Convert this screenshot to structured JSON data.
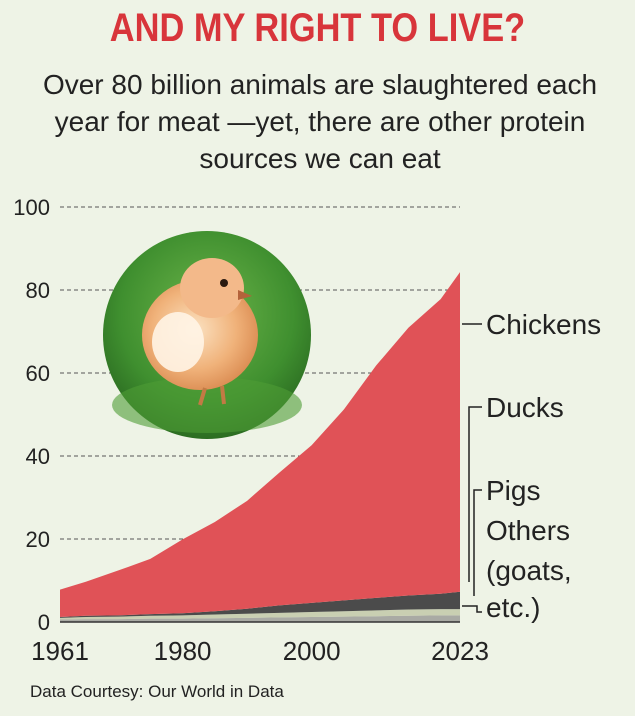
{
  "headline": "AND MY RIGHT TO LIVE?",
  "subhead": "Over 80 billion animals are slaughtered each year for meat —yet, there are other protein sources we can eat",
  "footer": "Data Courtesy: Our World in Data",
  "colors": {
    "background": "#eef3e6",
    "headline": "#d8353b",
    "chickens": "#e05257",
    "ducks": "#4b4b4b",
    "pigs": "#c9cfb2",
    "others": "#a9aaa4",
    "grid": "#555555"
  },
  "photo": {
    "icon": "chick-photo-circle"
  },
  "chart_data": {
    "type": "area",
    "stacked": true,
    "ylim": [
      0,
      100
    ],
    "yticks": [
      0,
      20,
      40,
      60,
      80,
      100
    ],
    "xlim": [
      1961,
      2023
    ],
    "xticks": [
      1961,
      1980,
      2000,
      2023
    ],
    "grid": "dashed horizontal",
    "legend_placement": "right",
    "x": [
      1961,
      1965,
      1970,
      1975,
      1980,
      1985,
      1990,
      1995,
      2000,
      2005,
      2010,
      2015,
      2020,
      2023
    ],
    "series": [
      {
        "name": "Others (goats, etc.)",
        "values": [
          0.6,
          0.7,
          0.7,
          0.8,
          0.8,
          0.9,
          1.0,
          1.1,
          1.2,
          1.3,
          1.4,
          1.5,
          1.6,
          1.6
        ]
      },
      {
        "name": "Pigs",
        "values": [
          0.4,
          0.5,
          0.6,
          0.7,
          0.8,
          0.9,
          1.0,
          1.1,
          1.2,
          1.3,
          1.4,
          1.5,
          1.5,
          1.5
        ]
      },
      {
        "name": "Ducks",
        "values": [
          0.2,
          0.3,
          0.3,
          0.4,
          0.5,
          0.8,
          1.2,
          1.8,
          2.2,
          2.6,
          3.0,
          3.4,
          3.7,
          4.2
        ]
      },
      {
        "name": "Chickens",
        "values": [
          6.6,
          8.2,
          10.8,
          13.3,
          17.8,
          21.5,
          26.0,
          32.0,
          38.0,
          46.0,
          56.0,
          64.5,
          71.0,
          77.0
        ]
      }
    ],
    "labels": [
      "Chickens",
      "Ducks",
      "Pigs",
      "Others",
      "(goats,",
      "etc.)"
    ]
  }
}
